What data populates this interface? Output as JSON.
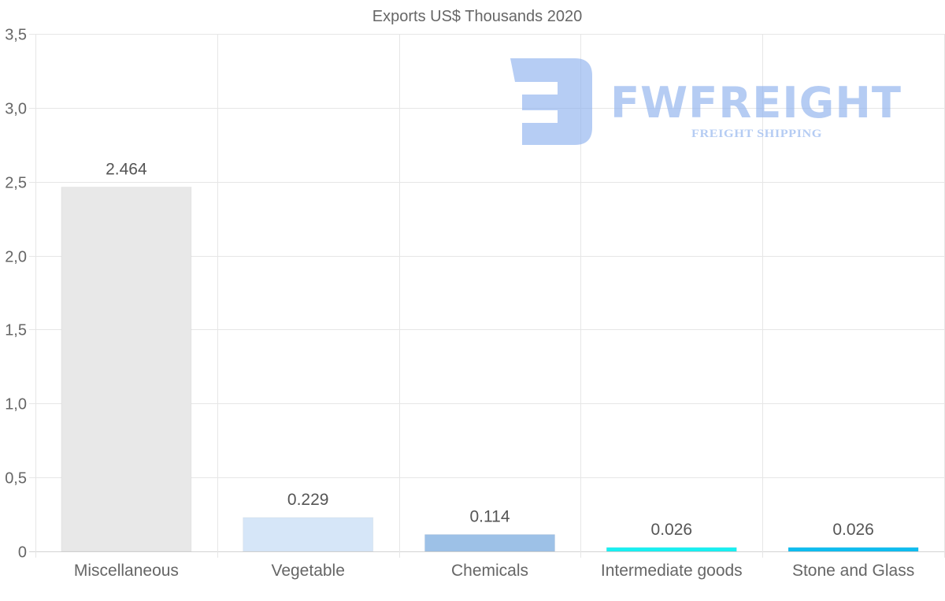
{
  "chart_data": {
    "type": "bar",
    "title": "Exports US$ Thousands 2020",
    "categories": [
      "Miscellaneous",
      "Vegetable",
      "Chemicals",
      "Intermediate goods",
      "Stone and Glass"
    ],
    "values": [
      2.464,
      0.229,
      0.114,
      0.026,
      0.026
    ],
    "value_labels": [
      "2.464",
      "0.229",
      "0.114",
      "0.026",
      "0.026"
    ],
    "colors": [
      "#e8e8e8",
      "#d6e6f8",
      "#9dc1e7",
      "#19f0f2",
      "#0fbdf0"
    ],
    "ylim": [
      0,
      3.5
    ],
    "yticks": [
      {
        "value": 0,
        "label": "0"
      },
      {
        "value": 0.5,
        "label": "0,5"
      },
      {
        "value": 1.0,
        "label": "1,0"
      },
      {
        "value": 1.5,
        "label": "1,5"
      },
      {
        "value": 2.0,
        "label": "2,0"
      },
      {
        "value": 2.5,
        "label": "2,5"
      },
      {
        "value": 3.0,
        "label": "3,0"
      },
      {
        "value": 3.5,
        "label": "3,5"
      }
    ],
    "xlabel": "",
    "ylabel": "",
    "grid": true,
    "legend": "none"
  },
  "watermark": {
    "brand": "FWFREIGHT",
    "tagline": "FREIGHT SHIPPING",
    "color": "#8fb2ee"
  }
}
